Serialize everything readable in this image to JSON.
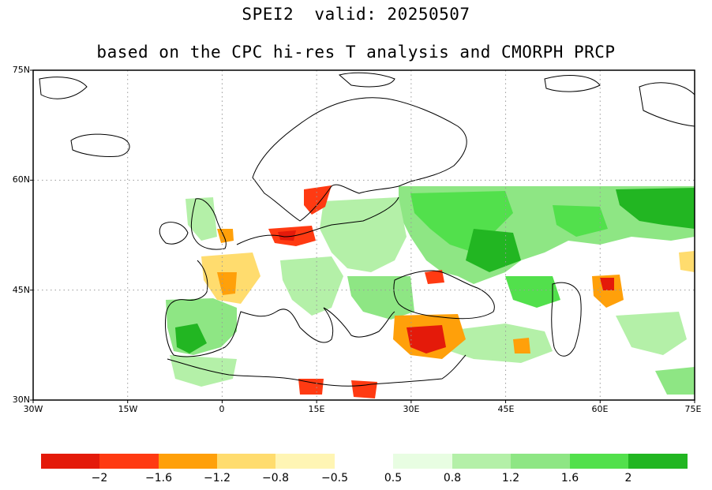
{
  "title": {
    "line1": "SPEI2  valid: 20250507",
    "line2": "based on the CPC hi-res T analysis and CMORPH PRCP"
  },
  "axes": {
    "lat_labels": [
      "75N",
      "60N",
      "45N",
      "30N"
    ],
    "lon_labels": [
      "30W",
      "15W",
      "0",
      "15E",
      "30E",
      "45E",
      "60E",
      "75E"
    ],
    "lat_values": [
      75,
      60,
      45,
      30
    ],
    "lon_values": [
      -30,
      -15,
      0,
      15,
      30,
      45,
      60,
      75
    ],
    "lat_range": [
      30,
      75
    ],
    "lon_range": [
      -30,
      75
    ],
    "grid": "dotted"
  },
  "colorbar": {
    "dry": [
      {
        "color": "#e41a0a"
      },
      {
        "color": "#ff3a12"
      },
      {
        "color": "#ffa00a"
      },
      {
        "color": "#ffdc6e"
      },
      {
        "color": "#fff5b4"
      }
    ],
    "wet": [
      {
        "color": "#e8fde2"
      },
      {
        "color": "#b4f0a8"
      },
      {
        "color": "#8ee684"
      },
      {
        "color": "#52e04c"
      },
      {
        "color": "#22b622"
      }
    ],
    "dry_labels": [
      "−2",
      "−1.6",
      "−1.2",
      "−0.8",
      "−0.5"
    ],
    "wet_labels": [
      "0.5",
      "0.8",
      "1.2",
      "1.6",
      "2"
    ]
  },
  "colors": {
    "land_outline": "#000000",
    "borders": "#999999",
    "grid": "#9a9a9a",
    "dry_strong": "#e41a0a",
    "wet_strong": "#22b622"
  }
}
